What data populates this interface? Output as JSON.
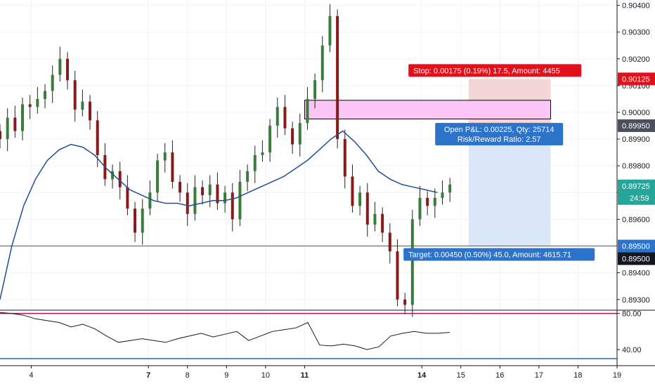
{
  "chart_data": {
    "type": "candlestick",
    "price_axis": {
      "range": [
        0.8926,
        0.9042
      ],
      "ticks": [
        "0.90400",
        "0.90300",
        "0.90200",
        "0.90100",
        "0.90000",
        "0.89900",
        "0.89800",
        "0.89700",
        "0.89600",
        "0.89400",
        "0.89300"
      ]
    },
    "rsi_axis": {
      "range": [
        23,
        82
      ],
      "ticks": [
        "80.00",
        "40.00"
      ],
      "upper_band": 80,
      "lower_band": 30
    },
    "time_axis": {
      "range": [
        3.2,
        19.0
      ],
      "ticks": [
        "4",
        "7",
        "8",
        "9",
        "10",
        "11",
        "14",
        "15",
        "16",
        "17",
        "18",
        "19"
      ],
      "bold_ticks": [
        "7",
        "11",
        "14"
      ]
    },
    "price_labels": {
      "stop_level": "0.90125",
      "entry_level": "0.89950",
      "current_price": "0.89725",
      "countdown": "24:59",
      "target_level": "0.89500",
      "target_level_2": "0.89500"
    },
    "position": {
      "stop_text": "Stop: 0.00175 (0.19%) 17.5, Amount: 4455",
      "pnl_text": "Open P&L: 0.00225, Qty: 25714",
      "rr_text": "Risk/Reward Ratio: 2.57",
      "target_text": "Target: 0.00450 (0.50%) 45.0, Amount: 4615.71",
      "entry": 0.8995,
      "stop": 0.90125,
      "target": 0.895,
      "x_start": 15.2,
      "x_end": 17.3
    },
    "zone": {
      "x_start": 11.0,
      "x_end": 17.3,
      "price_top": 0.90045,
      "price_bottom": 0.89975
    },
    "support_line": 0.895,
    "series": {
      "close": [
        0.899,
        0.8998,
        0.8993,
        0.9003,
        0.9002,
        0.9005,
        0.9008,
        0.9014,
        0.902,
        0.9012,
        0.9001,
        0.9004,
        0.8997,
        0.8984,
        0.8975,
        0.8978,
        0.8972,
        0.8964,
        0.8955,
        0.8964,
        0.897,
        0.8982,
        0.8985,
        0.8974,
        0.897,
        0.8962,
        0.8972,
        0.8969,
        0.8973,
        0.8966,
        0.897,
        0.896,
        0.8974,
        0.8978,
        0.8984,
        0.8985,
        0.8995,
        0.9002,
        0.8994,
        0.8988,
        0.8996,
        0.9005,
        0.9012,
        0.9025,
        0.9036,
        0.899,
        0.8976,
        0.8965,
        0.897,
        0.8958,
        0.8962,
        0.8955,
        0.8948,
        0.893,
        0.8928,
        0.896,
        0.8968,
        0.8965,
        0.8968,
        0.897,
        0.8973
      ],
      "ma": [
        0.893,
        0.895,
        0.8965,
        0.8975,
        0.8982,
        0.8986,
        0.8988,
        0.8987,
        0.8984,
        0.8979,
        0.8975,
        0.8971,
        0.8969,
        0.8967,
        0.8966,
        0.8966,
        0.8965,
        0.8966,
        0.8967,
        0.8967,
        0.8968,
        0.897,
        0.8972,
        0.8974,
        0.8976,
        0.8979,
        0.8982,
        0.8986,
        0.899,
        0.8993,
        0.8989,
        0.8984,
        0.8978,
        0.8975,
        0.8973,
        0.8972,
        0.8971,
        0.897
      ],
      "rsi": [
        81,
        80,
        78,
        74,
        72,
        70,
        65,
        68,
        63,
        55,
        48,
        50,
        52,
        50,
        48,
        52,
        55,
        58,
        54,
        57,
        60,
        50,
        55,
        60,
        62,
        64,
        70,
        45,
        44,
        46,
        44,
        40,
        43,
        55,
        58,
        60,
        58,
        58,
        59
      ]
    }
  }
}
